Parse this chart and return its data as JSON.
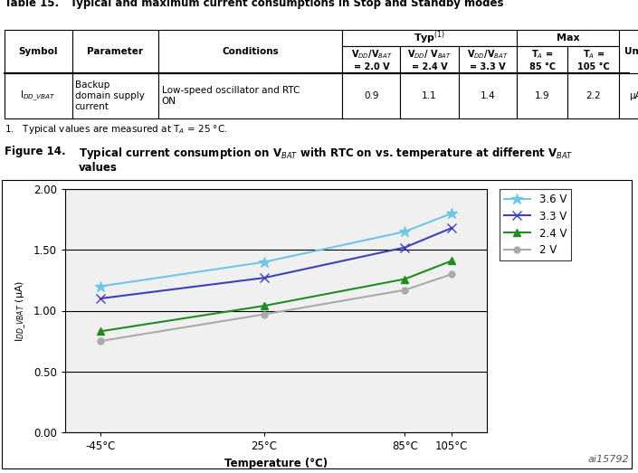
{
  "fig_id": "ai15792",
  "plot": {
    "x_values": [
      -45,
      25,
      85,
      105
    ],
    "x_labels": [
      "-45°C",
      "25°C",
      "85°C",
      "105°C"
    ],
    "series": [
      {
        "label": "3.6 V",
        "color": "#6EC6E8",
        "marker": "*",
        "markersize": 9,
        "values": [
          1.2,
          1.4,
          1.65,
          1.8
        ]
      },
      {
        "label": "3.3 V",
        "color": "#4040BB",
        "marker": "x",
        "markersize": 7,
        "values": [
          1.1,
          1.27,
          1.52,
          1.68
        ]
      },
      {
        "label": "2.4 V",
        "color": "#228B22",
        "marker": "^",
        "markersize": 6,
        "values": [
          0.83,
          1.04,
          1.26,
          1.41
        ]
      },
      {
        "label": "2 V",
        "color": "#AAAAAA",
        "marker": "o",
        "markersize": 5,
        "values": [
          0.75,
          0.97,
          1.17,
          1.3
        ]
      }
    ],
    "ylabel": "IDD_VBAT (μA)",
    "xlabel": "Temperature (°C)",
    "ylim": [
      0.0,
      2.0
    ],
    "yticks": [
      0.0,
      0.5,
      1.0,
      1.5,
      2.0
    ],
    "ytick_labels": [
      "0.00",
      "0.50",
      "1.00",
      "1.50",
      "2.00"
    ]
  },
  "bg_color": "#FFFFFF"
}
